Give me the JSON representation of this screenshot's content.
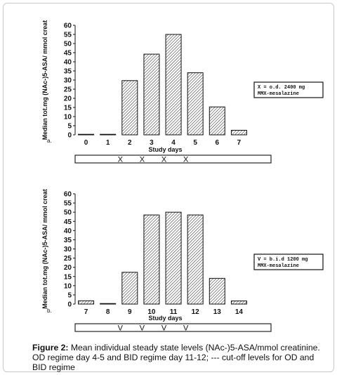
{
  "chart_data": [
    {
      "type": "bar",
      "panel_label": "a.",
      "categories": [
        "0",
        "1",
        "2",
        "3",
        "4",
        "5",
        "6",
        "7"
      ],
      "values": [
        0.3,
        0.3,
        29.7,
        44.2,
        55.0,
        34.0,
        15.3,
        2.5
      ],
      "xlabel": "Study days",
      "ylabel": "Median tot.mg (NAc-)5-ASA/ mmol creat",
      "ylim": [
        0,
        60
      ],
      "yticks": [
        0,
        5,
        10,
        15,
        20,
        25,
        30,
        35,
        40,
        45,
        50,
        55,
        60
      ],
      "legend": [
        "X = o.d. 2400 mg",
        "MMX-mesalazine"
      ],
      "legend_position": "right",
      "regime_marks": [
        "X",
        "X",
        "X",
        "X"
      ]
    },
    {
      "type": "bar",
      "panel_label": "b.",
      "categories": [
        "7",
        "8",
        "9",
        "10",
        "11",
        "12",
        "13",
        "14"
      ],
      "values": [
        1.8,
        0.3,
        17.3,
        48.5,
        50.0,
        48.5,
        14.0,
        1.7
      ],
      "xlabel": "Study days",
      "ylabel": "Median tot.mg (NAc-)5-ASA/ mmol creat",
      "ylim": [
        0,
        60
      ],
      "yticks": [
        0,
        5,
        10,
        15,
        20,
        25,
        30,
        35,
        40,
        45,
        50,
        55,
        60
      ],
      "legend": [
        "V = b.i.d 1200 mg",
        "MMX-mesalazine"
      ],
      "legend_position": "right",
      "regime_marks": [
        "V",
        "V",
        "V",
        "V"
      ]
    }
  ],
  "caption": {
    "bold": "Figure 2:",
    "text": " Mean individual steady state levels (NAc-)5-ASA/mmol creatinine. OD regime day 4-5 and BID regime day 11-12; --- cut-off levels for OD and BID regime"
  }
}
